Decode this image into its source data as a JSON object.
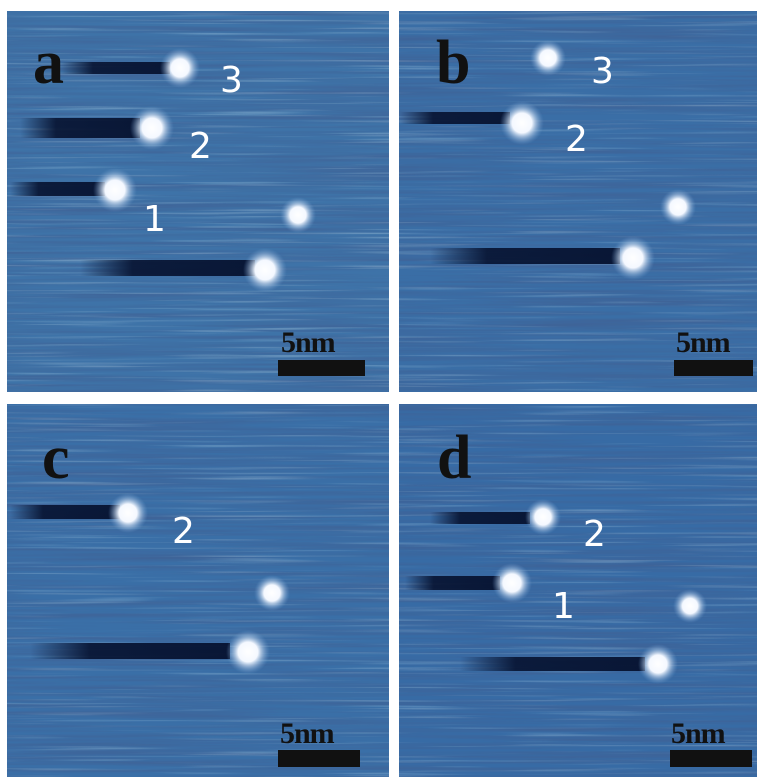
{
  "panels": [
    {
      "letter": "a",
      "scale_bar": "5nm",
      "spot_labels": [
        "3",
        "2",
        "1"
      ]
    },
    {
      "letter": "b",
      "scale_bar": "5nm",
      "spot_labels": [
        "3",
        "2"
      ]
    },
    {
      "letter": "c",
      "scale_bar": "5nm",
      "spot_labels": [
        "2"
      ]
    },
    {
      "letter": "d",
      "scale_bar": "5nm",
      "spot_labels": [
        "2",
        "1"
      ]
    }
  ]
}
